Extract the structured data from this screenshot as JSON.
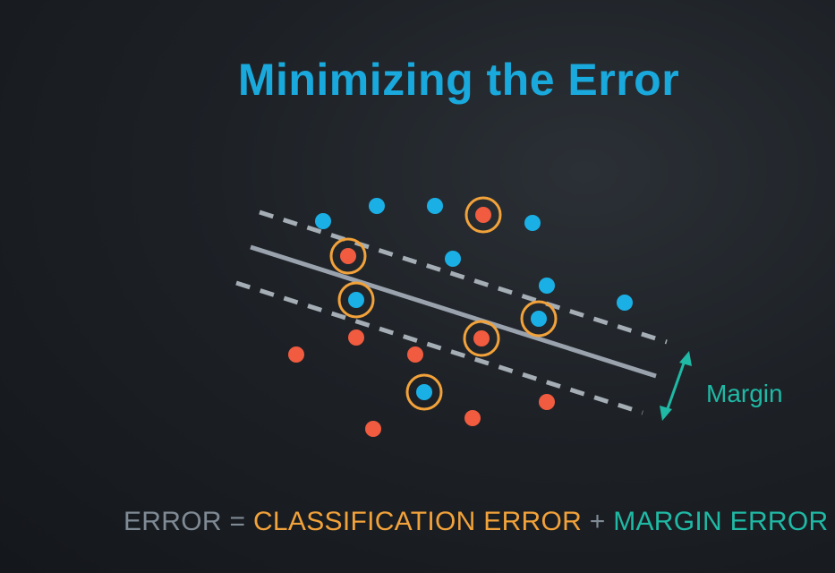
{
  "title": "Minimizing the Error",
  "margin_label": "Margin",
  "equation": {
    "error": "ERROR",
    "equals": " = ",
    "classification_error": "CLASSIFICATION ERROR",
    "plus": " + ",
    "margin_error": "MARGIN ERROR"
  },
  "colors": {
    "title": "#19a9dc",
    "blue_point": "#1ab0e6",
    "red_point": "#f15b3f",
    "highlight_ring": "#f2a23a",
    "boundary_line": "#9aa3ad",
    "margin_line": "#a5adb5",
    "margin_accent": "#1fb9a5",
    "equation_gray": "#7f8a95",
    "equation_orange": "#f2a23a",
    "equation_teal": "#1fb9a5"
  }
}
